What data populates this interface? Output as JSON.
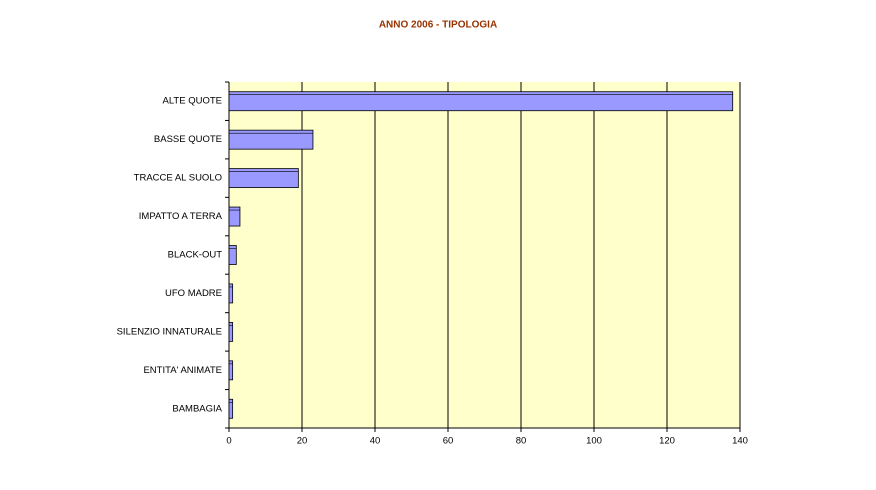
{
  "chart_data": {
    "type": "bar",
    "orientation": "horizontal",
    "title": "ANNO 2006 - TIPOLOGIA",
    "categories": [
      "ALTE QUOTE",
      "BASSE QUOTE",
      "TRACCE AL SUOLO",
      "IMPATTO A TERRA",
      "BLACK-OUT",
      "UFO MADRE",
      "SILENZIO INNATURALE",
      "ENTITA' ANIMATE",
      "BAMBAGIA"
    ],
    "values": [
      138,
      23,
      19,
      3,
      2,
      1,
      1,
      1,
      1
    ],
    "color": "#9999ff",
    "background": "#ffffcc",
    "xlim": [
      0,
      140
    ],
    "xticks": [
      0,
      20,
      40,
      60,
      80,
      100,
      120,
      140
    ],
    "grid": true
  }
}
